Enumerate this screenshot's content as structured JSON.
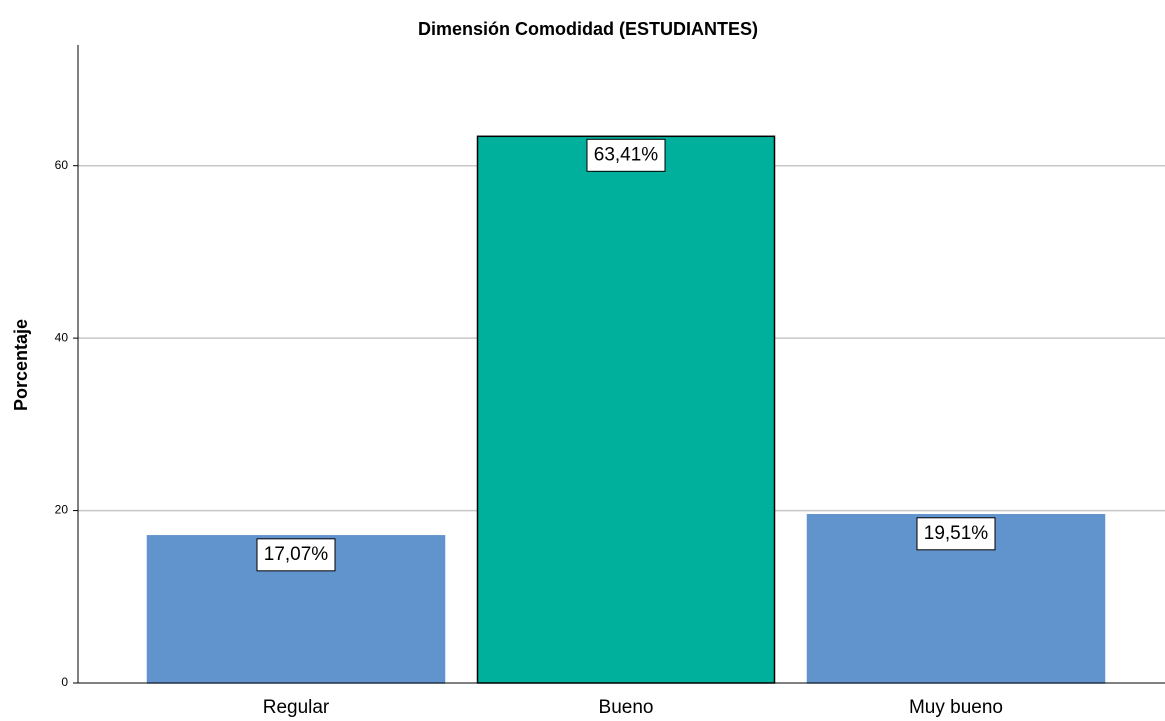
{
  "chart_data": {
    "type": "bar",
    "title": "Dimensión Comodidad (ESTUDIANTES)",
    "ylabel": "Porcentaje",
    "categories": [
      "Regular",
      "Bueno",
      "Muy bueno"
    ],
    "values": [
      17.07,
      63.41,
      19.51
    ],
    "value_labels": [
      "17,07%",
      "63,41%",
      "19,51%"
    ],
    "colors": [
      "#6193cc",
      "#00b09d",
      "#6193cc"
    ],
    "edgecolors": [
      "#6193cc",
      "#000000",
      "#6193cc"
    ],
    "ylim": [
      0,
      74
    ],
    "yticks": [
      0,
      20,
      40,
      60
    ],
    "grid": true
  }
}
